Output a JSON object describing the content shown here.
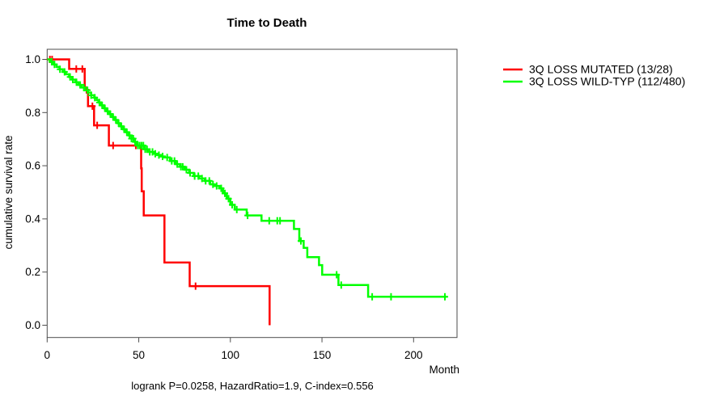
{
  "title": "Time to Death",
  "caption": "logrank P=0.0258, HazardRatio=1.9, C-index=0.556",
  "axes": {
    "y_label": "cumulative survival rate",
    "x_label": "Month",
    "x_ticks": [
      "0",
      "50",
      "100",
      "150",
      "200"
    ],
    "x_tick_values": [
      0,
      50,
      100,
      150,
      200
    ],
    "y_ticks": [
      "1.0",
      "0.8",
      "0.6",
      "0.4",
      "0.2",
      "0.0"
    ],
    "y_tick_values": [
      1.0,
      0.8,
      0.6,
      0.4,
      0.2,
      0.0
    ]
  },
  "legend": [
    {
      "label": "3Q LOSS MUTATED (13/28)",
      "color": "#ff0000"
    },
    {
      "label": "3Q LOSS WILD-TYP (112/480)",
      "color": "#00ff00"
    }
  ],
  "chart_data": {
    "type": "line",
    "subtype": "kaplan-meier-step",
    "title": "Time to Death",
    "xlabel": "Month",
    "ylabel": "cumulative survival rate",
    "xlim": [
      0,
      224
    ],
    "ylim": [
      0,
      1.0
    ],
    "grid": false,
    "legend_position": "top-right-outside",
    "stats_annotation": "logrank P=0.0258, HazardRatio=1.9, C-index=0.556",
    "series": [
      {
        "name": "3Q LOSS MUTATED (13/28)",
        "color": "#ff0000",
        "n_total": 28,
        "n_events": 13,
        "points": [
          [
            0,
            1.0
          ],
          [
            12,
            0.964
          ],
          [
            20.5,
            0.885
          ],
          [
            22.3,
            0.824
          ],
          [
            25.6,
            0.752
          ],
          [
            33.7,
            0.676
          ],
          [
            51.3,
            0.59
          ],
          [
            51.6,
            0.504
          ],
          [
            52.7,
            0.413
          ],
          [
            64,
            0.236
          ],
          [
            77.8,
            0.147
          ],
          [
            121.4,
            0.0
          ]
        ],
        "censor_times": [
          1.5,
          2.7,
          15.9,
          19.2,
          21.5,
          24.7,
          27.3,
          36,
          48.4,
          81
        ]
      },
      {
        "name": "3Q LOSS WILD-TYP (112/480)",
        "color": "#00ff00",
        "n_total": 480,
        "n_events": 112,
        "points": [
          [
            0,
            1.0
          ],
          [
            1.7,
            0.991
          ],
          [
            3.4,
            0.981
          ],
          [
            5.1,
            0.972
          ],
          [
            6.8,
            0.963
          ],
          [
            8.5,
            0.953
          ],
          [
            10.2,
            0.944
          ],
          [
            12,
            0.934
          ],
          [
            13.7,
            0.924
          ],
          [
            15.4,
            0.914
          ],
          [
            17.1,
            0.904
          ],
          [
            18.8,
            0.894
          ],
          [
            20.5,
            0.884
          ],
          [
            22.2,
            0.875
          ],
          [
            24,
            0.865
          ],
          [
            25.7,
            0.856
          ],
          [
            27,
            0.847
          ],
          [
            28,
            0.838
          ],
          [
            29.5,
            0.827
          ],
          [
            31,
            0.816
          ],
          [
            32.5,
            0.805
          ],
          [
            34,
            0.794
          ],
          [
            35.5,
            0.783
          ],
          [
            37,
            0.772
          ],
          [
            38.5,
            0.76
          ],
          [
            40,
            0.748
          ],
          [
            41.5,
            0.737
          ],
          [
            43,
            0.726
          ],
          [
            44.5,
            0.714
          ],
          [
            46,
            0.702
          ],
          [
            47.5,
            0.69
          ],
          [
            49,
            0.676
          ],
          [
            53,
            0.662
          ],
          [
            55,
            0.652
          ],
          [
            58,
            0.645
          ],
          [
            60,
            0.64
          ],
          [
            62,
            0.635
          ],
          [
            64,
            0.631
          ],
          [
            67,
            0.618
          ],
          [
            70,
            0.606
          ],
          [
            72.5,
            0.596
          ],
          [
            75,
            0.585
          ],
          [
            77.5,
            0.573
          ],
          [
            80,
            0.561
          ],
          [
            83,
            0.552
          ],
          [
            86,
            0.543
          ],
          [
            89,
            0.53
          ],
          [
            91,
            0.524
          ],
          [
            94,
            0.515
          ],
          [
            96,
            0.496
          ],
          [
            98,
            0.476
          ],
          [
            100,
            0.453
          ],
          [
            102.4,
            0.435
          ],
          [
            108.9,
            0.413
          ],
          [
            117,
            0.393
          ],
          [
            134.7,
            0.362
          ],
          [
            137.6,
            0.317
          ],
          [
            140,
            0.291
          ],
          [
            142,
            0.256
          ],
          [
            148.4,
            0.226
          ],
          [
            150.1,
            0.19
          ],
          [
            159,
            0.151
          ],
          [
            175.2,
            0.107
          ],
          [
            218,
            0.107
          ]
        ],
        "censor_times": [
          2.5,
          4,
          7,
          9.5,
          12.5,
          14,
          16,
          18,
          20,
          22,
          24,
          26,
          28.5,
          30,
          31.5,
          33,
          34.5,
          36,
          37.5,
          39,
          40.5,
          42,
          43.5,
          45,
          46,
          47,
          48,
          49.5,
          50.5,
          51.5,
          52.5,
          53.5,
          54.5,
          56,
          57.5,
          59,
          61,
          63,
          65.5,
          68,
          69.5,
          71,
          73,
          74,
          76,
          78,
          80.5,
          82.5,
          84.5,
          86.5,
          88.5,
          90.5,
          92.5,
          95,
          97,
          99,
          101,
          103.5,
          109.4,
          121.2,
          125.6,
          127.1,
          138.5,
          158,
          160.5,
          177.4,
          187.7,
          217.1
        ]
      }
    ]
  }
}
